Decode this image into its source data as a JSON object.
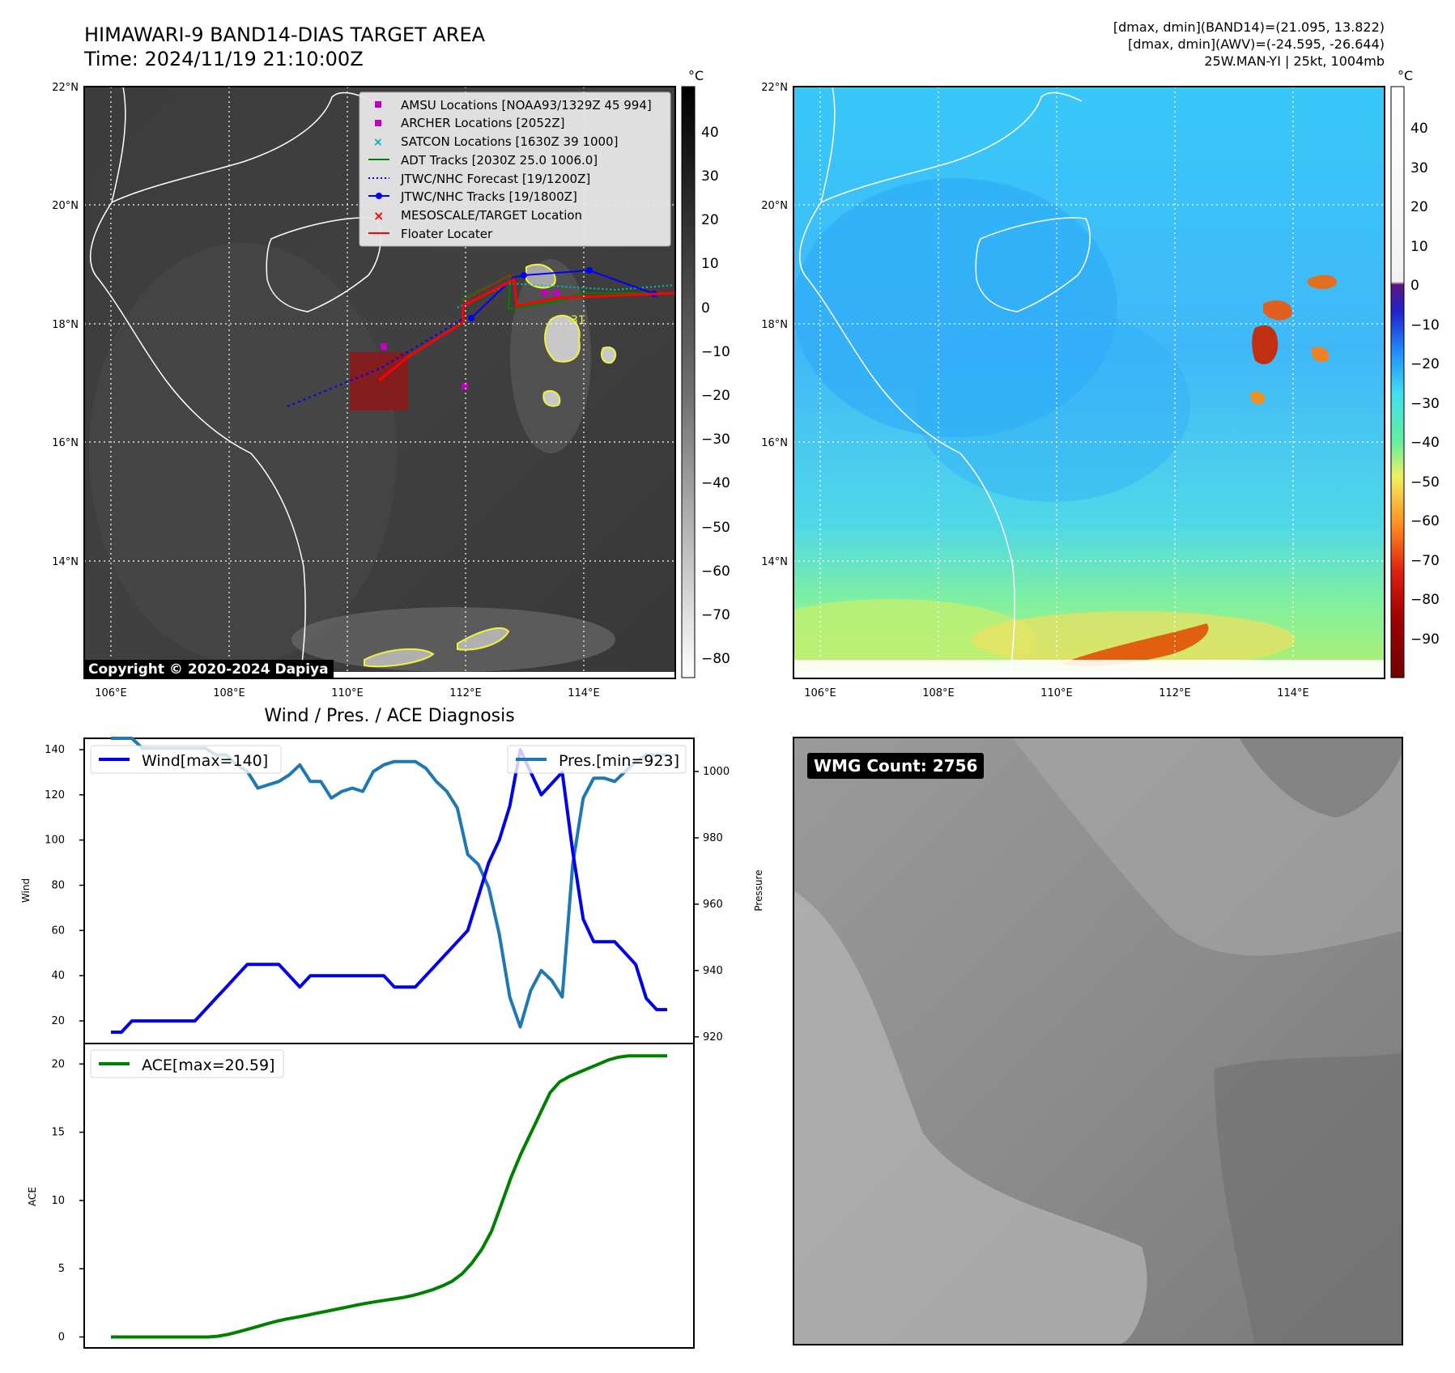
{
  "header": {
    "title_line1": "HIMAWARI-9 BAND14-DIAS TARGET AREA",
    "title_line2": "Time: 2024/11/19 21:10:00Z",
    "info_line1": "[dmax, dmin](BAND14)=(21.095, 13.822)",
    "info_line2": "[dmax, dmin](AWV)=(-24.595, -26.644)",
    "info_line3": "25W.MAN-YI | 25kt, 1004mb"
  },
  "maps": {
    "lat_labels": [
      "22°N",
      "20°N",
      "18°N",
      "16°N",
      "14°N"
    ],
    "lon_labels": [
      "106°E",
      "108°E",
      "110°E",
      "112°E",
      "114°E"
    ],
    "copyright": "Copyright © 2020-2024 Dapiya",
    "left_colorbar": {
      "unit": "°C",
      "ticks": [
        "40",
        "30",
        "20",
        "10",
        "0",
        "−10",
        "−20",
        "−30",
        "−40",
        "−50",
        "−60",
        "−70",
        "−80"
      ]
    },
    "right_colorbar": {
      "unit": "°C",
      "ticks": [
        "40",
        "30",
        "20",
        "10",
        "0",
        "−10",
        "−20",
        "−30",
        "−40",
        "−50",
        "−60",
        "−70",
        "−80",
        "−90"
      ]
    },
    "legend": [
      {
        "label": "AMSU Locations [NOAA93/1329Z 45 994]",
        "color": "#c000c0"
      },
      {
        "label": "ARCHER Locations [2052Z]",
        "color": "#c000c0"
      },
      {
        "label": "SATCON Locations [1630Z 39 1000]",
        "color": "#00b0b0"
      },
      {
        "label": "ADT Tracks [2030Z 25.0 1006.0]",
        "color": "#008000"
      },
      {
        "label": "JTWC/NHC Forecast [19/1200Z]",
        "color": "#0000ff"
      },
      {
        "label": "JTWC/NHC Tracks [19/1800Z]",
        "color": "#0000ff"
      },
      {
        "label": "MESOSCALE/TARGET Location",
        "color": "#ff0000"
      },
      {
        "label": "Floater Locater",
        "color": "#ff0000"
      }
    ],
    "contour_label": "-31"
  },
  "wmg": {
    "label": "WMG Count: 2756"
  },
  "chart_data": [
    {
      "type": "line",
      "title": "Wind / Pres. / ACE Diagnosis",
      "ylabel": "Wind",
      "y2label": "Pressure",
      "ylim": [
        10,
        145
      ],
      "y2lim": [
        918,
        1010
      ],
      "yticks": [
        20,
        40,
        60,
        80,
        100,
        120,
        140
      ],
      "y2ticks": [
        920,
        940,
        960,
        980,
        1000
      ],
      "series": [
        {
          "name": "Wind[max=140]",
          "color": "#0000ee",
          "values": [
            15,
            15,
            20,
            20,
            20,
            20,
            20,
            20,
            20,
            25,
            30,
            35,
            40,
            45,
            45,
            45,
            45,
            40,
            35,
            40,
            40,
            40,
            40,
            40,
            40,
            40,
            40,
            35,
            35,
            35,
            40,
            45,
            50,
            55,
            60,
            75,
            90,
            100,
            115,
            140,
            130,
            120,
            125,
            130,
            95,
            65,
            55,
            55,
            55,
            50,
            45,
            30,
            25,
            25
          ]
        },
        {
          "name": "Pres.[min=923]",
          "color": "#1f77b4",
          "axis": "right",
          "values": [
            1010,
            1010,
            1010,
            1007,
            1007,
            1007,
            1007,
            1007,
            1007,
            1007,
            1005,
            1005,
            1002,
            1000,
            995,
            996,
            997,
            999,
            1002,
            997,
            997,
            992,
            994,
            995,
            994,
            1000,
            1002,
            1003,
            1003,
            1003,
            1001,
            997,
            994,
            989,
            975,
            972,
            965,
            951,
            932,
            923,
            934,
            940,
            937,
            932,
            972,
            992,
            998,
            998,
            997,
            1000,
            1003,
            1005,
            1005,
            1005
          ]
        }
      ]
    },
    {
      "type": "line",
      "ylabel": "ACE",
      "ylim": [
        -0.8,
        21.5
      ],
      "yticks": [
        0,
        5,
        10,
        15,
        20
      ],
      "series": [
        {
          "name": "ACE[max=20.59]",
          "color": "#008000",
          "values": [
            0,
            0,
            0,
            0,
            0,
            0,
            0,
            0,
            0,
            0,
            0,
            0.06,
            0.19,
            0.37,
            0.56,
            0.76,
            0.97,
            1.16,
            1.32,
            1.44,
            1.58,
            1.73,
            1.87,
            2.02,
            2.16,
            2.31,
            2.45,
            2.57,
            2.68,
            2.79,
            2.9,
            3.05,
            3.25,
            3.47,
            3.75,
            4.1,
            4.64,
            5.42,
            6.42,
            7.75,
            9.7,
            11.7,
            13.4,
            14.9,
            16.4,
            17.9,
            18.7,
            19.1,
            19.4,
            19.7,
            20.0,
            20.3,
            20.5,
            20.59,
            20.59,
            20.59,
            20.59,
            20.59
          ]
        }
      ]
    }
  ]
}
